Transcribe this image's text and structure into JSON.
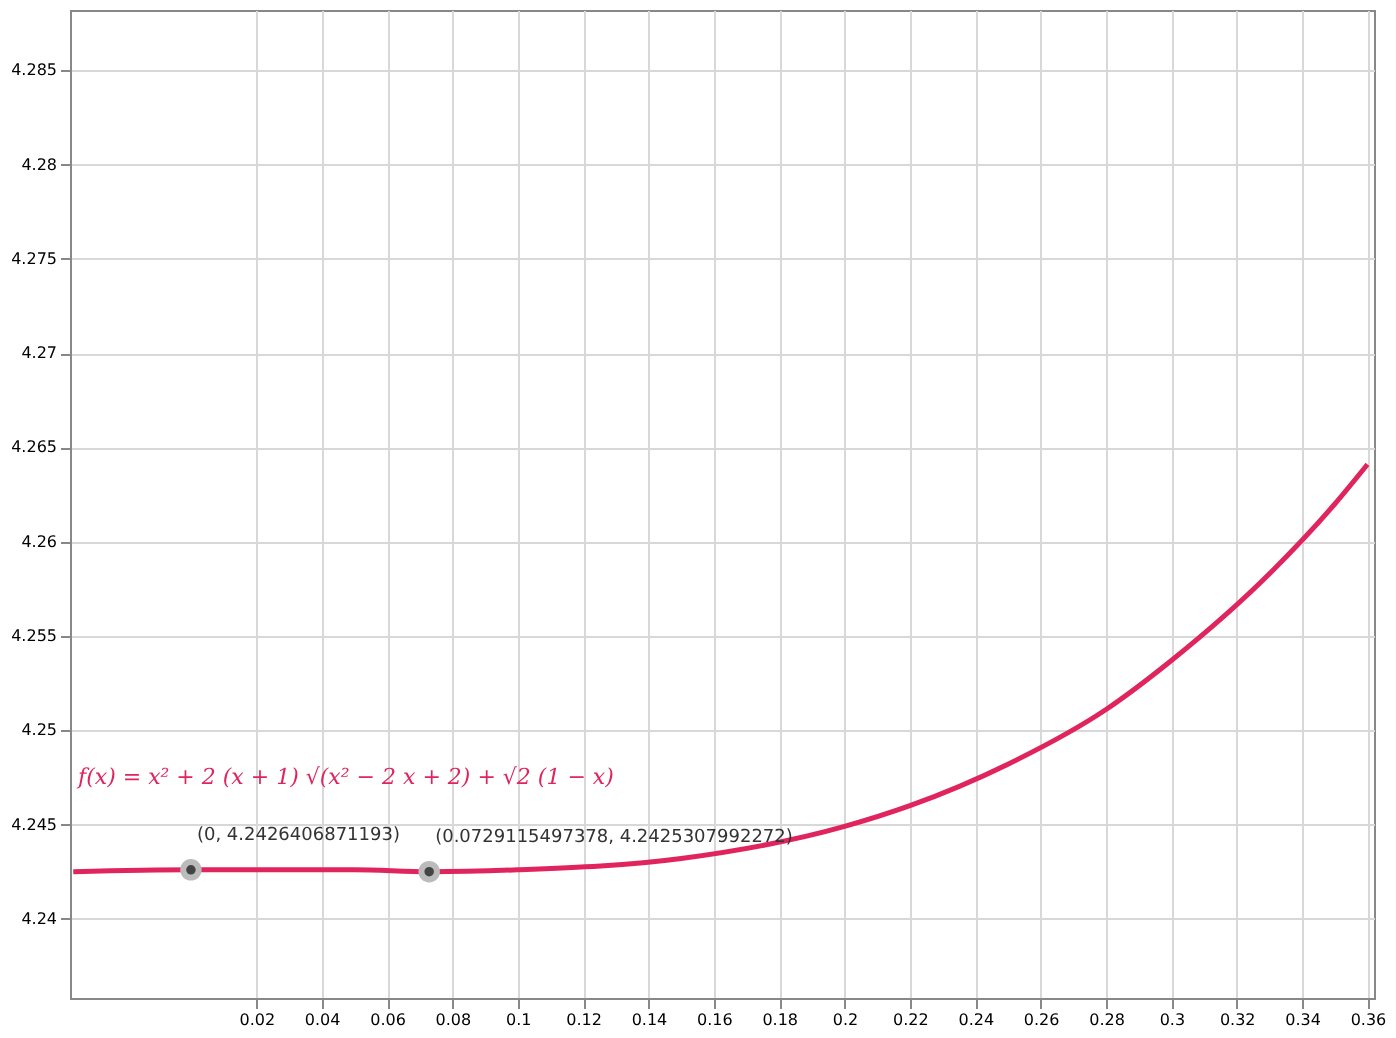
{
  "chart_data": {
    "type": "line",
    "annotations": [
      "f(x) = x² + 2 (x + 1) √(x² − 2 x + 2) + √2 (1 − x)",
      "(0, 4.2426406871193)",
      "(0.0729115497378, 4.2425307992272)"
    ],
    "series": [
      {
        "color": "#e0245e",
        "marker": "none",
        "x": [
          -0.036,
          0,
          0.05,
          0.0729,
          0.1,
          0.15,
          0.2,
          0.22,
          0.25,
          0.28,
          0.3,
          0.33,
          0.35,
          0.36
        ],
        "values": [
          4.2425,
          4.2426,
          4.2426,
          4.2425,
          4.2426,
          4.2432,
          4.2449,
          4.246,
          4.2482,
          4.2511,
          4.2537,
          4.2583,
          4.262,
          4.2641
        ]
      },
      {
        "type": "scatter",
        "color": "#444444",
        "marker": "circle",
        "x": [
          0,
          0.0729
        ],
        "values": [
          4.2426,
          4.2425
        ]
      }
    ],
    "xlim": [
      -0.037,
      0.362
    ],
    "ylim": [
      4.2358,
      4.2882
    ],
    "xticks": [
      0.02,
      0.04,
      0.06,
      0.08,
      {
        "value": 0.1,
        "label": "0.1"
      },
      0.12,
      0.14,
      0.16,
      0.18,
      {
        "value": 0.2,
        "label": "0.2"
      },
      0.22,
      0.24,
      0.26,
      0.28,
      {
        "value": 0.3,
        "label": "0.3"
      },
      0.32,
      0.34,
      0.36
    ],
    "yticks": [
      {
        "value": 4.24,
        "label": "4.24"
      },
      4.245,
      {
        "value": 4.25,
        "label": "4.25"
      },
      4.255,
      {
        "value": 4.26,
        "label": "4.26"
      },
      4.265,
      {
        "value": 4.27,
        "label": "4.27"
      },
      4.275,
      {
        "value": 4.28,
        "label": "4.28"
      },
      4.285
    ],
    "grid": true
  }
}
